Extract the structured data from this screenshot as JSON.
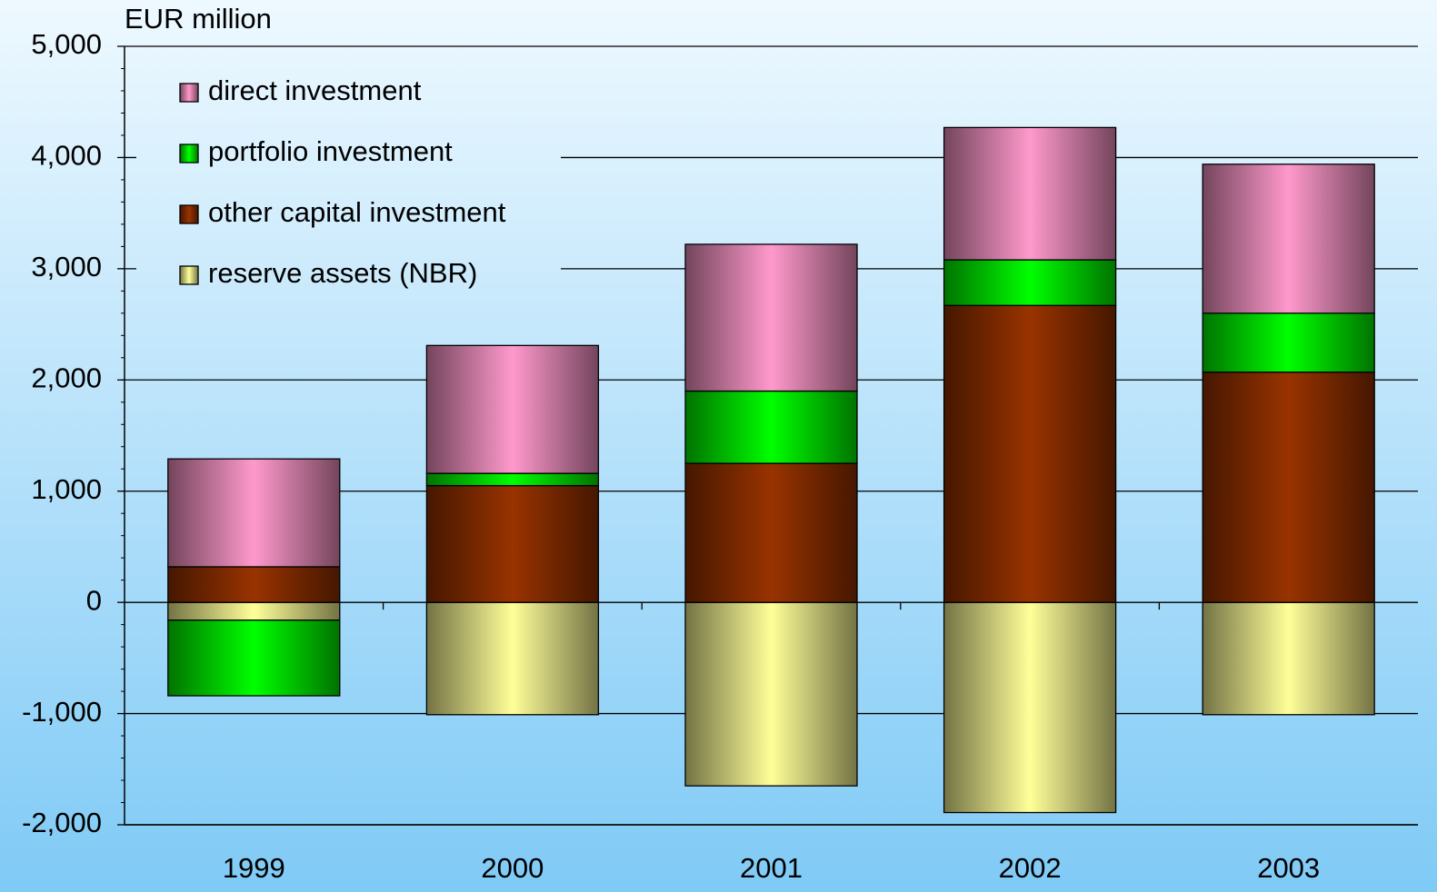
{
  "chart_data": {
    "type": "stacked_bar",
    "y_label": "EUR million",
    "categories": [
      "1999",
      "2000",
      "2001",
      "2002",
      "2003"
    ],
    "series": [
      {
        "name": "reserve assets (NBR)",
        "color": "#ffff99",
        "values": [
          -160,
          -1010,
          -1650,
          -1890,
          -1010
        ]
      },
      {
        "name": "other capital investment",
        "color": "#993300",
        "values": [
          320,
          1050,
          1250,
          2670,
          2070
        ]
      },
      {
        "name": "portfolio investment",
        "color": "#00ff00",
        "values": [
          -680,
          110,
          650,
          410,
          530
        ]
      },
      {
        "name": "direct investment",
        "color": "#ff99cc",
        "values": [
          970,
          1150,
          1320,
          1190,
          1340
        ]
      }
    ],
    "legend_order": [
      3,
      2,
      1,
      0
    ],
    "ylim": [
      -2000,
      5000
    ],
    "yticks": [
      {
        "value": -2000,
        "label": "-2,000"
      },
      {
        "value": -1000,
        "label": "-1,000"
      },
      0,
      {
        "value": 1000,
        "label": "1,000"
      },
      {
        "value": 2000,
        "label": "2,000"
      },
      {
        "value": 3000,
        "label": "3,000"
      },
      {
        "value": 4000,
        "label": "4,000"
      },
      {
        "value": 5000,
        "label": "5,000"
      }
    ],
    "grid": true,
    "legend": "upper left"
  }
}
